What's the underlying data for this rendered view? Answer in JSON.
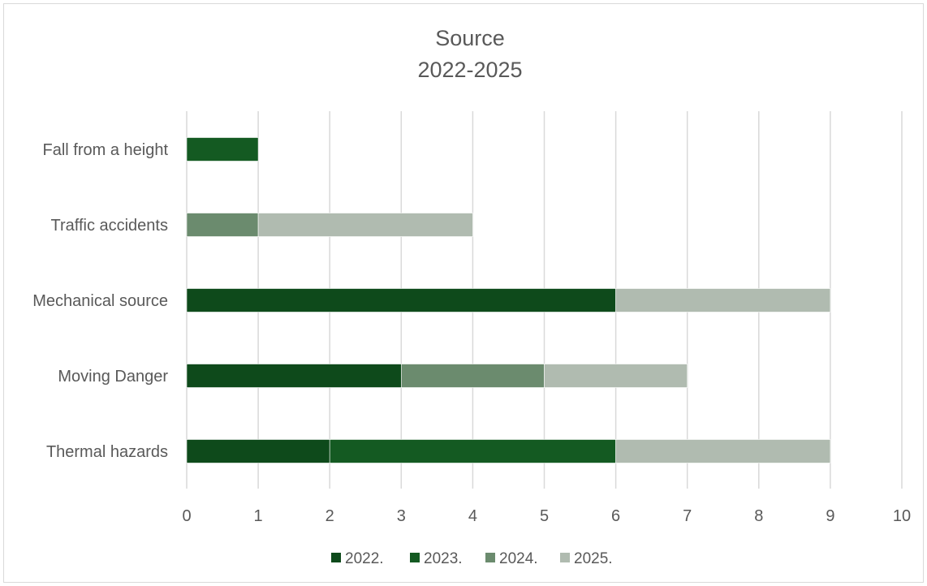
{
  "chart_data": {
    "type": "bar",
    "orientation": "horizontal",
    "stacked": true,
    "title_lines": [
      "Source",
      "2022-2025"
    ],
    "categories": [
      "Fall from a height",
      "Traffic accidents",
      "Mechanical source",
      "Moving Danger",
      "Thermal hazards"
    ],
    "series": [
      {
        "name": "2022.",
        "color": "#0e4a1b",
        "values": [
          0,
          0,
          6,
          3,
          2
        ]
      },
      {
        "name": "2023.",
        "color": "#145a22",
        "values": [
          1,
          0,
          0,
          0,
          4
        ]
      },
      {
        "name": "2024.",
        "color": "#6b8b6e",
        "values": [
          0,
          1,
          0,
          2,
          0
        ]
      },
      {
        "name": "2025.",
        "color": "#b0bbb0",
        "values": [
          0,
          3,
          3,
          2,
          3
        ]
      }
    ],
    "xlim": [
      0,
      10
    ],
    "xticks": [
      "0",
      "1",
      "2",
      "3",
      "4",
      "5",
      "6",
      "7",
      "8",
      "9",
      "10"
    ],
    "grid": "vertical",
    "legend_position": "bottom"
  }
}
